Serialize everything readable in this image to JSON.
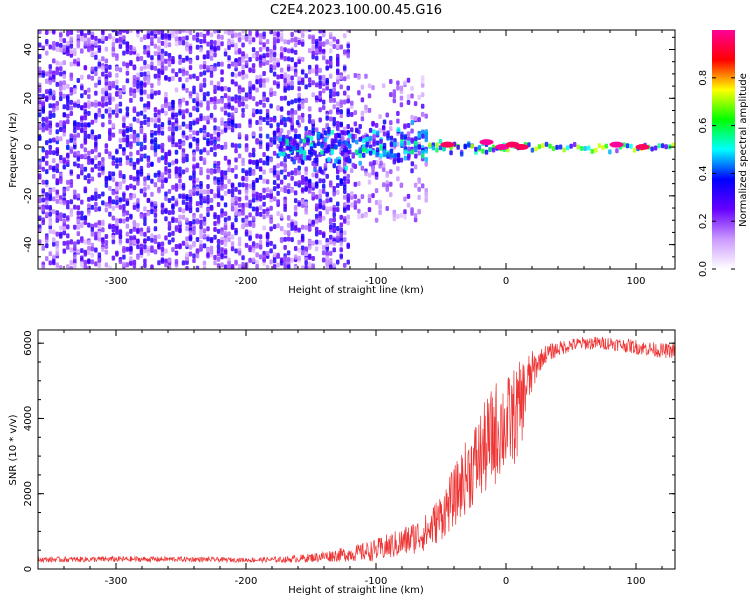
{
  "figure_title": "C2E4.2023.100.00.45.G16",
  "colorbar": {
    "label": "Normalized spectral amplitude",
    "ticks": [
      0.0,
      0.2,
      0.4,
      0.6,
      0.8
    ],
    "tick_labels": [
      "0.0",
      "0.2",
      "0.4",
      "0.6",
      "0.8"
    ],
    "range": [
      0,
      1
    ],
    "stops": [
      "#ffffff",
      "#cc99ff",
      "#6600ff",
      "#0000ff",
      "#00ffff",
      "#00ff00",
      "#ffff00",
      "#ff0000",
      "#ff0099"
    ]
  },
  "chart_data": [
    {
      "type": "heatmap",
      "title": "",
      "xlabel": "Height of straight line (km)",
      "ylabel": "Frequency (Hz)",
      "xlim": [
        -360,
        130
      ],
      "ylim": [
        -50,
        48
      ],
      "x_ticks": [
        -300,
        -200,
        -100,
        0,
        100
      ],
      "x_tick_labels": [
        "-300",
        "-200",
        "-100",
        "0",
        "100"
      ],
      "y_ticks": [
        -40,
        -20,
        0,
        20,
        40
      ],
      "y_tick_labels": [
        "-40",
        "-20",
        "0",
        "20",
        "40"
      ],
      "regions": [
        {
          "x_range": [
            -360,
            -120
          ],
          "freq_spread": 50,
          "amplitude": 0.3,
          "density": 0.8
        },
        {
          "x_range": [
            -120,
            -60
          ],
          "freq_spread": 30,
          "amplitude": 0.25,
          "density": 0.35
        },
        {
          "x_range": [
            -175,
            -60
          ],
          "freq_spread": 8,
          "amplitude": 0.45,
          "density": 0.9
        },
        {
          "x_range": [
            -60,
            0
          ],
          "freq_spread": 3,
          "amplitude": 0.55,
          "density": 0.9
        },
        {
          "x_range": [
            0,
            130
          ],
          "freq_spread": 1.5,
          "amplitude": 0.6,
          "density": 1.0
        }
      ],
      "peaks": [
        {
          "x": -45,
          "y": 1,
          "amplitude": 0.95
        },
        {
          "x": -15,
          "y": 2,
          "amplitude": 1.0
        },
        {
          "x": -3,
          "y": 0,
          "amplitude": 1.0
        },
        {
          "x": 5,
          "y": 1,
          "amplitude": 0.95
        },
        {
          "x": 12,
          "y": 0,
          "amplitude": 0.95
        },
        {
          "x": 85,
          "y": 1,
          "amplitude": 1.0
        },
        {
          "x": 105,
          "y": 0,
          "amplitude": 0.95
        }
      ]
    },
    {
      "type": "line",
      "title": "",
      "xlabel": "Height of straight line (km)",
      "ylabel": "SNR (10 * v/v)",
      "xlim": [
        -360,
        130
      ],
      "ylim": [
        0,
        6350
      ],
      "x_ticks": [
        -300,
        -200,
        -100,
        0,
        100
      ],
      "x_tick_labels": [
        "-300",
        "-200",
        "-100",
        "0",
        "100"
      ],
      "y_ticks": [
        0,
        2000,
        4000,
        6000
      ],
      "y_tick_labels": [
        "0",
        "2000",
        "4000",
        "6000"
      ],
      "color": "#ee3333",
      "series": [
        {
          "x": [
            -360,
            -300,
            -250,
            -200,
            -170,
            -150,
            -120,
            -100,
            -80,
            -60,
            -50,
            -40,
            -30,
            -20,
            -10,
            -5,
            0,
            5,
            10,
            15,
            20,
            25,
            30,
            40,
            50,
            60,
            70,
            80,
            90,
            100,
            110,
            120,
            130
          ],
          "y": [
            250,
            260,
            260,
            240,
            250,
            300,
            400,
            500,
            700,
            1000,
            1400,
            1900,
            2500,
            3000,
            3500,
            3800,
            3800,
            4000,
            4200,
            4800,
            5200,
            5500,
            5700,
            5850,
            5950,
            6000,
            6000,
            6000,
            5950,
            5900,
            5850,
            5800,
            5800
          ],
          "noise": [
            70,
            80,
            70,
            60,
            80,
            120,
            200,
            300,
            400,
            500,
            650,
            800,
            1000,
            1200,
            1400,
            1400,
            1300,
            1300,
            1300,
            900,
            600,
            300,
            250,
            200,
            180,
            180,
            180,
            180,
            180,
            200,
            200,
            200,
            200
          ]
        }
      ]
    }
  ]
}
